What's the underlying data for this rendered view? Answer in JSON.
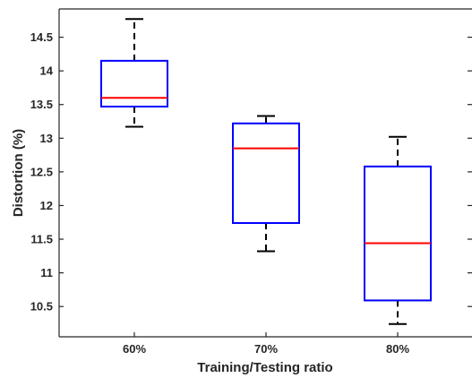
{
  "chart_data": {
    "type": "box",
    "title": "",
    "xlabel": "Training/Testing ratio",
    "ylabel": "Distortion (%)",
    "categories": [
      "60%",
      "70%",
      "80%"
    ],
    "ylim": [
      10.05,
      14.92
    ],
    "yticks": [
      10.5,
      11,
      11.5,
      12,
      12.5,
      13,
      13.5,
      14,
      14.5
    ],
    "ytick_labels": [
      "10.5",
      "11",
      "11.5",
      "12",
      "12.5",
      "13",
      "13.5",
      "14",
      "14.5"
    ],
    "grid": false,
    "box_color": "#0000ff",
    "median_color": "#ff0000",
    "whisker_color": "#000000",
    "boxes": [
      {
        "category": "60%",
        "whisker_low": 13.17,
        "q1": 13.47,
        "median": 13.6,
        "q3": 14.15,
        "whisker_high": 14.77
      },
      {
        "category": "70%",
        "whisker_low": 11.32,
        "q1": 11.74,
        "median": 12.85,
        "q3": 13.22,
        "whisker_high": 13.33
      },
      {
        "category": "80%",
        "whisker_low": 10.24,
        "q1": 10.59,
        "median": 11.44,
        "q3": 12.58,
        "whisker_high": 13.02
      }
    ]
  }
}
